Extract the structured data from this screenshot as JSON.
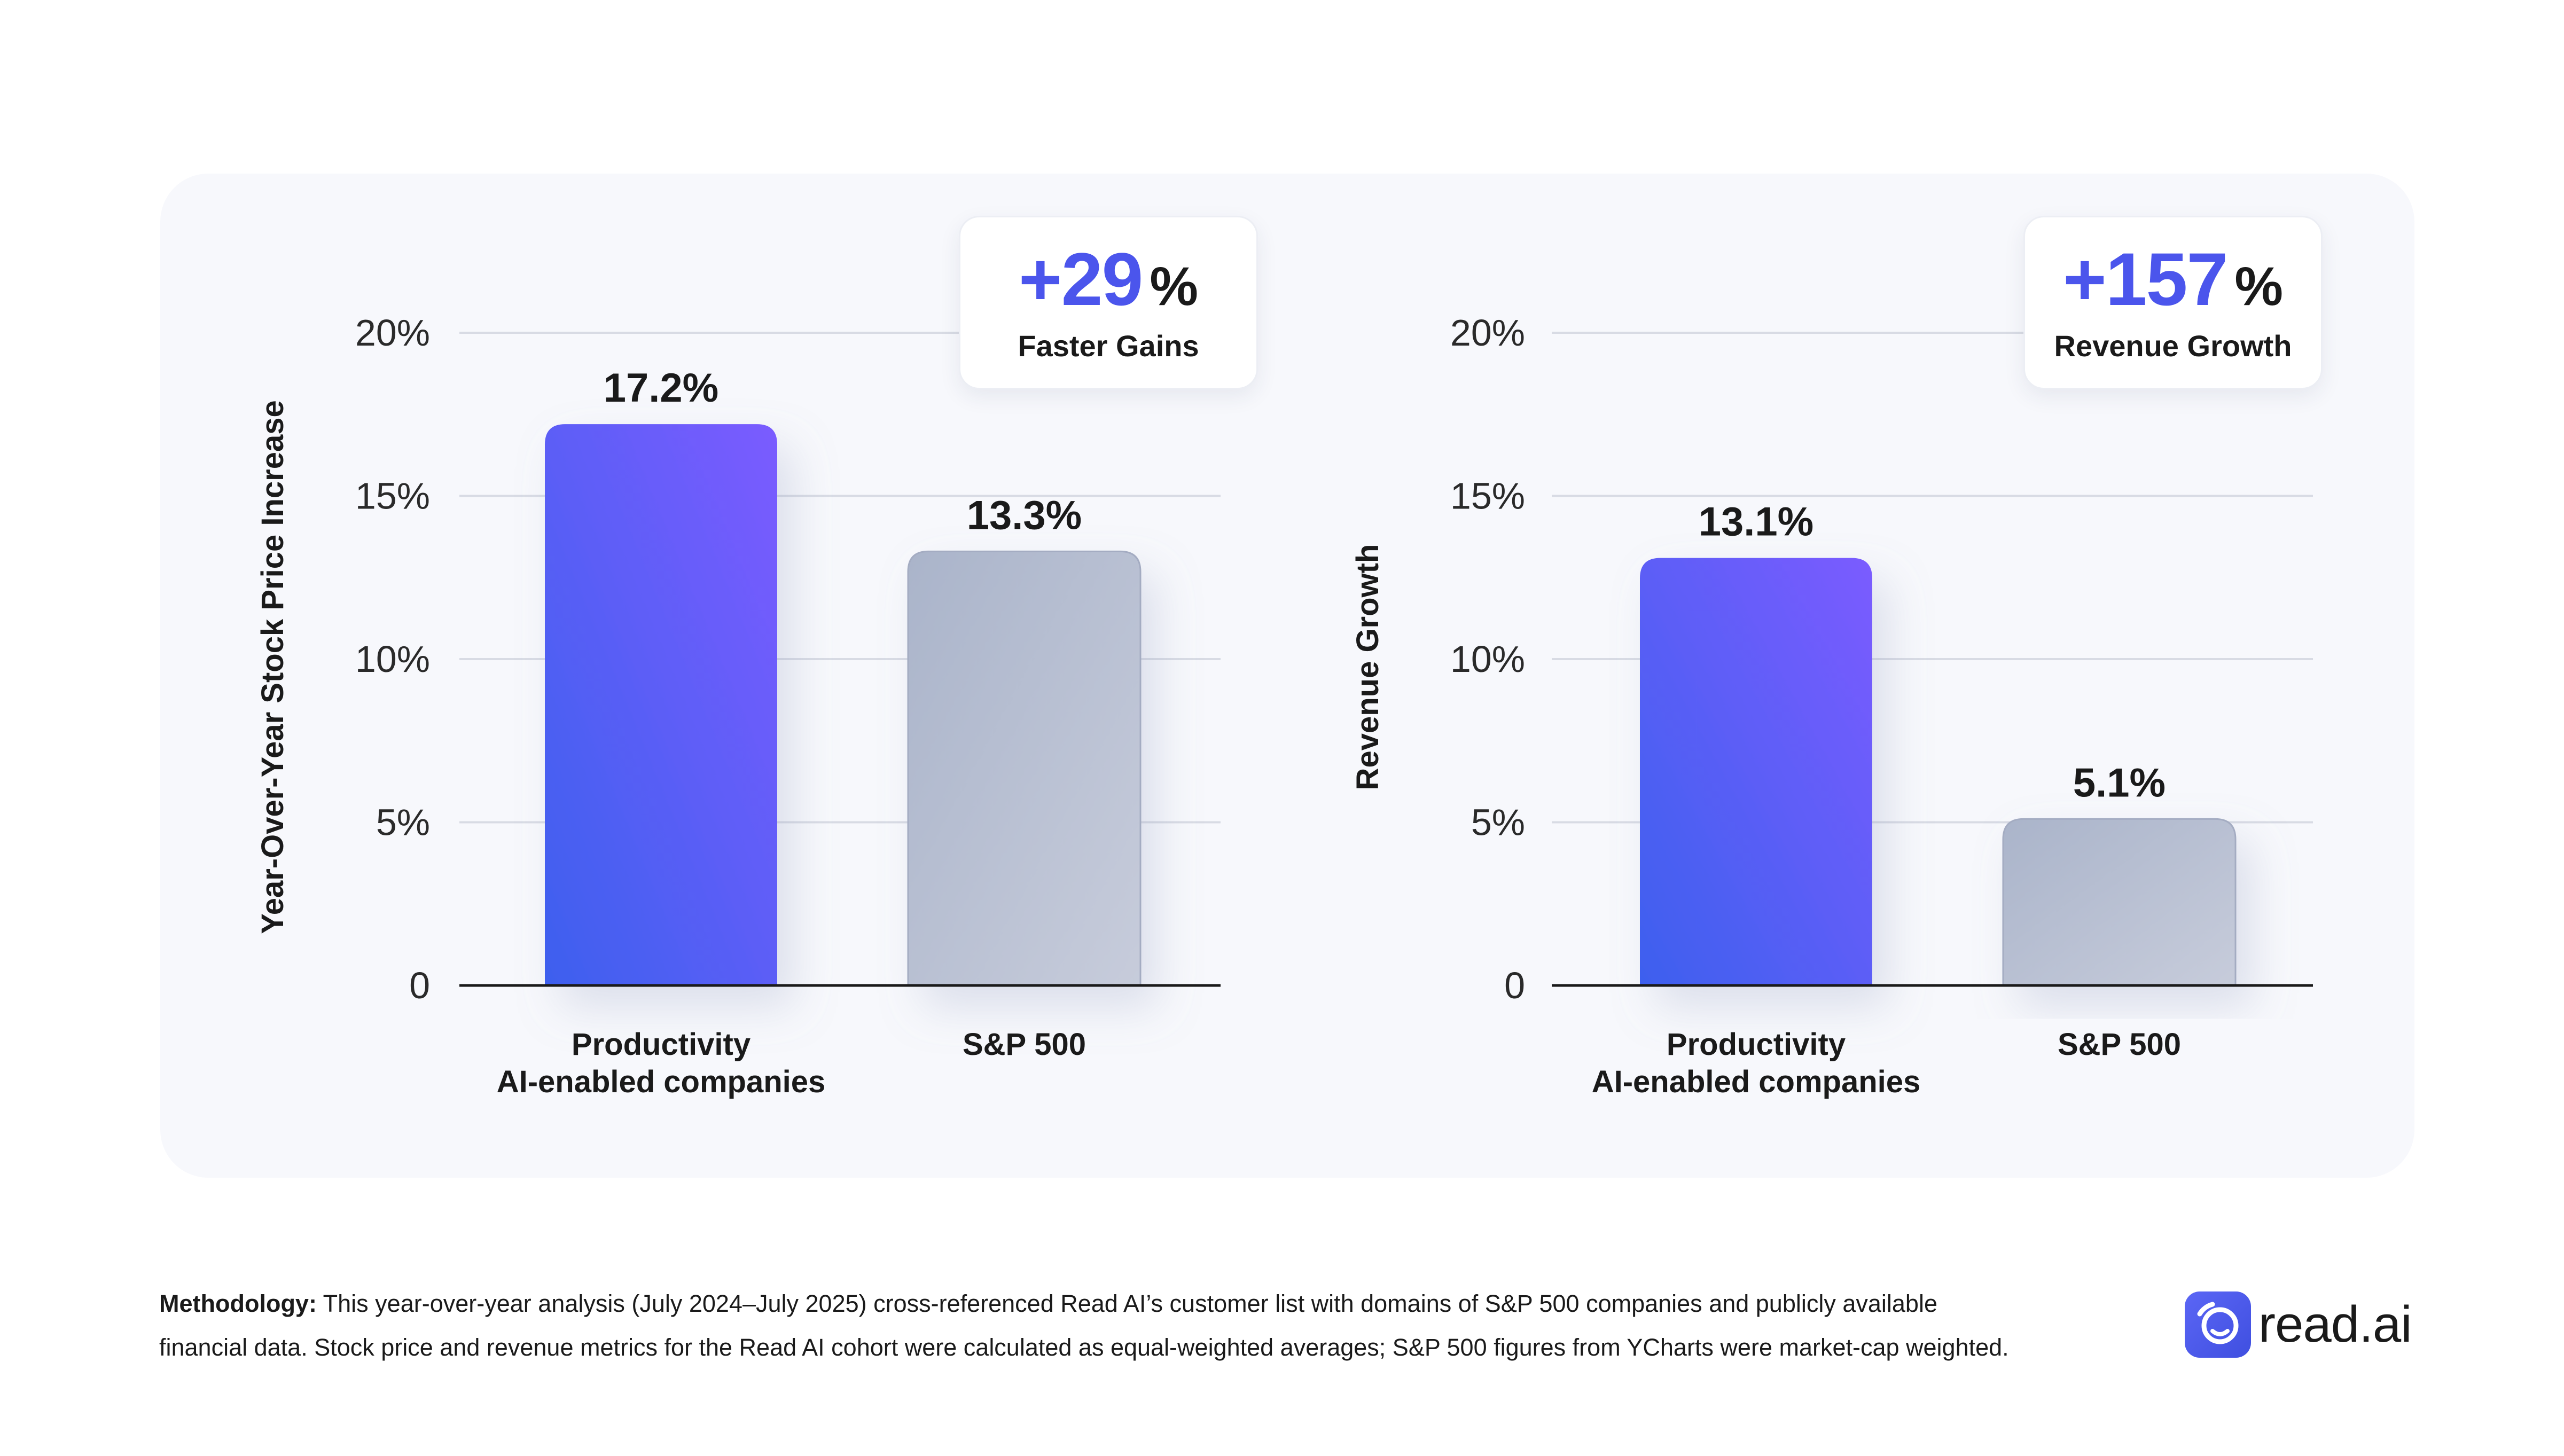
{
  "chart_data": [
    {
      "type": "bar",
      "ylabel": "Year-Over-Year Stock Price Increase",
      "ylim": [
        0,
        20
      ],
      "yticks": [
        "0",
        "5%",
        "10%",
        "15%",
        "20%"
      ],
      "categories": [
        "Productivity AI-enabled companies",
        "S&P 500"
      ],
      "category_lines": [
        [
          "Productivity",
          "AI-enabled companies"
        ],
        [
          "S&P 500"
        ]
      ],
      "values": [
        17.2,
        13.3
      ],
      "value_labels": [
        "17.2%",
        "13.3%"
      ],
      "grid": true,
      "highlight": {
        "value": "+29",
        "unit": "%",
        "label": "Faster Gains"
      }
    },
    {
      "type": "bar",
      "ylabel": "Revenue Growth",
      "ylim": [
        0,
        20
      ],
      "yticks": [
        "0",
        "5%",
        "10%",
        "15%",
        "20%"
      ],
      "categories": [
        "Productivity AI-enabled companies",
        "S&P 500"
      ],
      "category_lines": [
        [
          "Productivity",
          "AI-enabled companies"
        ],
        [
          "S&P 500"
        ]
      ],
      "values": [
        13.1,
        5.1
      ],
      "value_labels": [
        "13.1%",
        "5.1%"
      ],
      "grid": true,
      "highlight": {
        "value": "+157",
        "unit": "%",
        "label": "Revenue Growth"
      }
    }
  ],
  "colors": {
    "ai_bar_top": "#7b5cff",
    "ai_bar_bottom": "#3d5fee",
    "sp_bar_top": "#aab4ca",
    "sp_bar_bottom": "#c7ccdb",
    "accent": "#4b55ec",
    "grid": "#d8dbe4",
    "axis": "#1a1a1a",
    "panel": "#f7f8fc"
  },
  "footer": {
    "label": "Methodology:",
    "line1": "This year-over-year analysis (July 2024–July 2025) cross-referenced Read AI’s customer list with domains of S&P 500 companies and publicly available",
    "line2": "financial data. Stock price and revenue metrics for the Read AI cohort were calculated as equal-weighted averages; S&P 500 figures from YCharts were market-cap weighted."
  },
  "brand": {
    "name": "read.ai",
    "icon": "read-ai-logo-icon"
  }
}
